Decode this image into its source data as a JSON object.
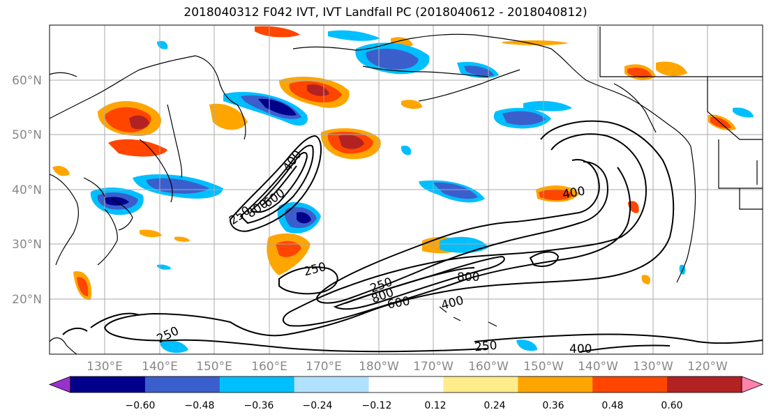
{
  "title": "2018040312 F042 IVT, IVT Landfall PC (2018040612 - 2018040812)",
  "lat_labels": [
    "60°N",
    "50°N",
    "40°N",
    "30°N",
    "20°N"
  ],
  "lon_labels": [
    "130°E",
    "140°E",
    "150°E",
    "160°E",
    "170°E",
    "180°W",
    "170°W",
    "160°W",
    "150°W",
    "140°W",
    "130°W",
    "120°W"
  ],
  "colorbar": {
    "colors": [
      "#9932cc",
      "#00008b",
      "#3a5fcd",
      "#00bfff",
      "#b0e2ff",
      "#ffffff",
      "#ffec8b",
      "#ffa500",
      "#ff4500",
      "#b22222",
      "#ff82ab"
    ],
    "tick_labels": [
      "−0.60",
      "−0.48",
      "−0.36",
      "−0.24",
      "−0.12",
      "0.12",
      "0.24",
      "0.36",
      "0.48",
      "0.60"
    ]
  },
  "contour_labels": [
    "250",
    "400",
    "600",
    "800",
    "250",
    "250",
    "800",
    "600",
    "400",
    "400",
    "250",
    "250",
    "400"
  ],
  "colors": {
    "contour": "#000000",
    "grid": "#aaaaaa",
    "coast": "#000000"
  }
}
